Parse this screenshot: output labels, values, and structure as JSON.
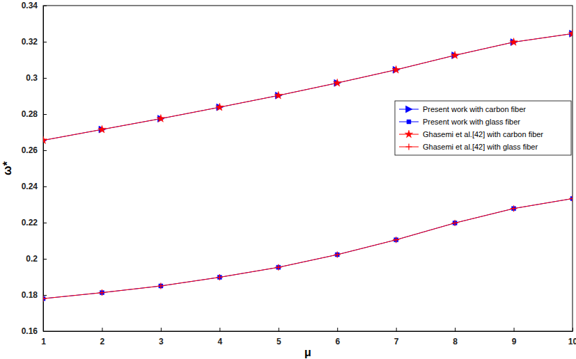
{
  "chart_data": {
    "type": "line",
    "xlabel": "μ",
    "ylabel": "ω*",
    "x": [
      1,
      2,
      3,
      4,
      5,
      6,
      7,
      8,
      9,
      10
    ],
    "xlim": [
      1,
      10
    ],
    "xticks": [
      1,
      2,
      3,
      4,
      5,
      6,
      7,
      8,
      9,
      10
    ],
    "ylim": [
      0.16,
      0.34
    ],
    "yticks": [
      0.16,
      0.18,
      0.2,
      0.22,
      0.24,
      0.26,
      0.28,
      0.3,
      0.32,
      0.34
    ],
    "legend": "right",
    "series": [
      {
        "name": "Present work with carbon fiber",
        "color": "#0000ff",
        "marker": "triangle-right",
        "line_style": "solid",
        "values": [
          0.2655,
          0.2715,
          0.2775,
          0.2838,
          0.2903,
          0.2972,
          0.3045,
          0.3125,
          0.3198,
          0.3245
        ]
      },
      {
        "name": "Present work with glass fiber",
        "color": "#0000ff",
        "marker": "square",
        "line_style": "solid",
        "values": [
          0.178,
          0.1813,
          0.185,
          0.1898,
          0.1953,
          0.2023,
          0.2105,
          0.2198,
          0.2278,
          0.2333
        ]
      },
      {
        "name": "Ghasemi et al.[42] with carbon fiber",
        "color": "#ff0000",
        "marker": "star",
        "line_style": "solid",
        "values": [
          0.2655,
          0.2715,
          0.2775,
          0.2838,
          0.2903,
          0.2972,
          0.3045,
          0.3125,
          0.3198,
          0.3245
        ]
      },
      {
        "name": "Ghasemi et al.[42] with glass fiber",
        "color": "#ff0000",
        "marker": "plus",
        "line_style": "solid",
        "values": [
          0.178,
          0.1813,
          0.185,
          0.1898,
          0.1953,
          0.2023,
          0.2105,
          0.2198,
          0.2278,
          0.2333
        ]
      }
    ]
  }
}
